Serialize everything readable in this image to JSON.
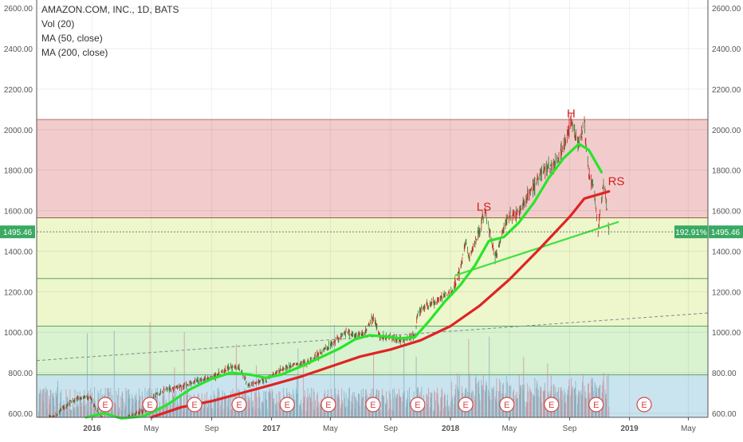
{
  "legend": {
    "symbol": "AMAZON.COM, INC., 1D, BATS",
    "volume": "Vol (20)",
    "ma50": "MA (50, close)",
    "ma200": "MA (200, close)"
  },
  "price_marker": {
    "value": "1495.46",
    "percent": "192.91%"
  },
  "colors": {
    "ma50": "#27e52a",
    "ma200": "#e02323",
    "trend": "#43e043",
    "zone_top": "#f2cccc",
    "zone_mid": "#eef6cc",
    "zone_low": "#d9f2d0",
    "zone_volume": "#c9e4ef",
    "up_candle": "#3a7a3a",
    "down_candle": "#c62828",
    "marker_bg": "#3aaa63",
    "earnings_ring": "#d34545"
  },
  "chart_data": {
    "type": "line",
    "title": "AMAZON.COM, INC., 1D, BATS",
    "ylim": [
      580,
      2640
    ],
    "xlim": [
      "2015-09-10",
      "2019-06-10"
    ],
    "yticks": [
      "600.00",
      "800.00",
      "1000.00",
      "1200.00",
      "1400.00",
      "1600.00",
      "1800.00",
      "2000.00",
      "2200.00",
      "2400.00",
      "2600.00"
    ],
    "xticks": [
      {
        "date": "2016-01-01",
        "label": "2016"
      },
      {
        "date": "2016-05-01",
        "label": "May"
      },
      {
        "date": "2016-09-01",
        "label": "Sep"
      },
      {
        "date": "2017-01-01",
        "label": "2017"
      },
      {
        "date": "2017-05-01",
        "label": "May"
      },
      {
        "date": "2017-09-01",
        "label": "Sep"
      },
      {
        "date": "2018-01-01",
        "label": "2018"
      },
      {
        "date": "2018-05-01",
        "label": "May"
      },
      {
        "date": "2018-09-01",
        "label": "Sep"
      },
      {
        "date": "2019-01-01",
        "label": "2019"
      },
      {
        "date": "2019-05-01",
        "label": "May"
      }
    ],
    "fib_levels": [
      {
        "price": 2050,
        "end": "2019-06-10"
      },
      {
        "price": 1565,
        "end": "2019-06-10"
      },
      {
        "price": 1265,
        "end": "2019-06-10"
      },
      {
        "price": 1030,
        "end": "2019-06-10"
      },
      {
        "price": 790,
        "end": "2019-06-10"
      }
    ],
    "price": [
      [
        "2015-09-14",
        560
      ],
      [
        "2015-10-20",
        590
      ],
      [
        "2015-11-10",
        640
      ],
      [
        "2015-12-01",
        670
      ],
      [
        "2015-12-28",
        680
      ],
      [
        "2016-01-20",
        575
      ],
      [
        "2016-02-10",
        520
      ],
      [
        "2016-03-01",
        560
      ],
      [
        "2016-03-30",
        600
      ],
      [
        "2016-04-25",
        620
      ],
      [
        "2016-05-05",
        680
      ],
      [
        "2016-06-01",
        720
      ],
      [
        "2016-07-01",
        730
      ],
      [
        "2016-08-01",
        760
      ],
      [
        "2016-09-01",
        775
      ],
      [
        "2016-10-10",
        830
      ],
      [
        "2016-10-27",
        820
      ],
      [
        "2016-11-15",
        740
      ],
      [
        "2016-12-20",
        765
      ],
      [
        "2017-01-20",
        815
      ],
      [
        "2017-02-15",
        840
      ],
      [
        "2017-03-15",
        850
      ],
      [
        "2017-04-15",
        905
      ],
      [
        "2017-05-15",
        965
      ],
      [
        "2017-06-05",
        1005
      ],
      [
        "2017-06-20",
        985
      ],
      [
        "2017-07-10",
        995
      ],
      [
        "2017-07-27",
        1085
      ],
      [
        "2017-08-10",
        975
      ],
      [
        "2017-09-01",
        975
      ],
      [
        "2017-09-25",
        955
      ],
      [
        "2017-10-20",
        985
      ],
      [
        "2017-10-27",
        1100
      ],
      [
        "2017-11-15",
        1130
      ],
      [
        "2017-12-10",
        1165
      ],
      [
        "2018-01-05",
        1200
      ],
      [
        "2018-01-20",
        1300
      ],
      [
        "2018-02-01",
        1450
      ],
      [
        "2018-02-08",
        1360
      ],
      [
        "2018-03-01",
        1500
      ],
      [
        "2018-03-12",
        1600
      ],
      [
        "2018-04-02",
        1370
      ],
      [
        "2018-04-27",
        1570
      ],
      [
        "2018-05-20",
        1590
      ],
      [
        "2018-06-20",
        1720
      ],
      [
        "2018-07-15",
        1820
      ],
      [
        "2018-07-27",
        1810
      ],
      [
        "2018-08-15",
        1885
      ],
      [
        "2018-09-04",
        2040
      ],
      [
        "2018-09-20",
        1930
      ],
      [
        "2018-10-01",
        2010
      ],
      [
        "2018-10-10",
        1780
      ],
      [
        "2018-10-20",
        1720
      ],
      [
        "2018-10-29",
        1500
      ],
      [
        "2018-11-10",
        1760
      ],
      [
        "2018-11-20",
        1495
      ]
    ],
    "series": [
      {
        "name": "MA (50, close)",
        "points": [
          [
            "2015-12-20",
            580
          ],
          [
            "2016-01-25",
            600
          ],
          [
            "2016-03-01",
            575
          ],
          [
            "2016-04-15",
            585
          ],
          [
            "2016-06-01",
            640
          ],
          [
            "2016-07-20",
            720
          ],
          [
            "2016-09-01",
            770
          ],
          [
            "2016-10-10",
            800
          ],
          [
            "2016-11-20",
            790
          ],
          [
            "2016-12-20",
            775
          ],
          [
            "2017-01-20",
            790
          ],
          [
            "2017-03-01",
            830
          ],
          [
            "2017-04-15",
            880
          ],
          [
            "2017-05-20",
            920
          ],
          [
            "2017-06-20",
            965
          ],
          [
            "2017-07-20",
            985
          ],
          [
            "2017-08-20",
            980
          ],
          [
            "2017-09-20",
            970
          ],
          [
            "2017-10-20",
            975
          ],
          [
            "2017-11-20",
            1060
          ],
          [
            "2017-12-20",
            1150
          ],
          [
            "2018-01-20",
            1230
          ],
          [
            "2018-02-20",
            1330
          ],
          [
            "2018-03-20",
            1450
          ],
          [
            "2018-04-20",
            1470
          ],
          [
            "2018-05-20",
            1540
          ],
          [
            "2018-06-20",
            1640
          ],
          [
            "2018-07-20",
            1760
          ],
          [
            "2018-08-20",
            1860
          ],
          [
            "2018-09-20",
            1930
          ],
          [
            "2018-10-10",
            1900
          ],
          [
            "2018-11-05",
            1790
          ]
        ]
      },
      {
        "name": "MA (200, close)",
        "points": [
          [
            "2016-05-01",
            580
          ],
          [
            "2016-07-01",
            630
          ],
          [
            "2016-09-01",
            660
          ],
          [
            "2016-11-01",
            700
          ],
          [
            "2017-01-01",
            740
          ],
          [
            "2017-03-01",
            780
          ],
          [
            "2017-05-01",
            830
          ],
          [
            "2017-07-01",
            880
          ],
          [
            "2017-09-01",
            915
          ],
          [
            "2017-11-01",
            960
          ],
          [
            "2018-01-01",
            1030
          ],
          [
            "2018-03-01",
            1130
          ],
          [
            "2018-05-01",
            1260
          ],
          [
            "2018-07-01",
            1410
          ],
          [
            "2018-09-01",
            1570
          ],
          [
            "2018-10-01",
            1660
          ],
          [
            "2018-11-20",
            1695
          ]
        ]
      }
    ],
    "trendlines": [
      {
        "kind": "solid",
        "from": [
          "2018-01-10",
          1280
        ],
        "to": [
          "2018-12-10",
          1545
        ]
      },
      {
        "kind": "dashed",
        "from": [
          "2015-09-10",
          860
        ],
        "to": [
          "2019-06-10",
          1095
        ]
      }
    ],
    "volume_max_height": 130,
    "earnings_dates": [
      "2016-01-28",
      "2016-04-28",
      "2016-07-28",
      "2016-10-27",
      "2017-02-02",
      "2017-04-27",
      "2017-07-27",
      "2017-10-26",
      "2018-02-01",
      "2018-04-26",
      "2018-07-26",
      "2018-10-25",
      "2019-01-31"
    ],
    "earnings_label": "E",
    "annotations": [
      {
        "text": "LS",
        "date": "2018-03-10",
        "price": 1600
      },
      {
        "text": "H",
        "date": "2018-09-04",
        "price": 2060
      },
      {
        "text": "RS",
        "date": "2018-12-05",
        "price": 1725
      }
    ]
  }
}
